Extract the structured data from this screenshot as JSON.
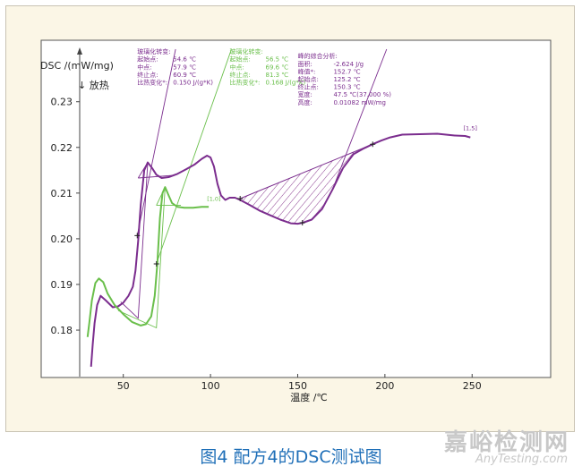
{
  "chart_data": {
    "type": "line",
    "ylabel": "DSC /(mW/mg)",
    "ylabel_direction": "↓ 放热",
    "xlabel": "温度 /℃",
    "xlim": [
      25,
      255
    ],
    "ylim": [
      0.171,
      0.2415
    ],
    "x_ticks": [
      50,
      100,
      150,
      200,
      250
    ],
    "y_ticks": [
      0.18,
      0.19,
      0.2,
      0.21,
      0.22,
      0.23
    ],
    "y_tick_labels": [
      "0.18",
      "0.19",
      "0.20",
      "0.21",
      "0.22",
      "0.23"
    ],
    "grid": false,
    "series": [
      {
        "color": "#7b2d8e",
        "points": [
          [
            31.5,
            0.172
          ],
          [
            32.5,
            0.177
          ],
          [
            33.5,
            0.1815
          ],
          [
            35,
            0.1855
          ],
          [
            37,
            0.1875
          ],
          [
            40,
            0.1865
          ],
          [
            44,
            0.185
          ],
          [
            47,
            0.1852
          ],
          [
            50,
            0.186
          ],
          [
            53,
            0.1875
          ],
          [
            55.5,
            0.1895
          ],
          [
            57,
            0.193
          ],
          [
            58.5,
            0.1995
          ],
          [
            60,
            0.2075
          ],
          [
            62,
            0.215
          ],
          [
            64,
            0.2167
          ],
          [
            66.5,
            0.2155
          ],
          [
            69,
            0.214
          ],
          [
            72,
            0.2133
          ],
          [
            76,
            0.2135
          ],
          [
            81,
            0.2142
          ],
          [
            86,
            0.2152
          ],
          [
            91,
            0.2163
          ],
          [
            95,
            0.2175
          ],
          [
            98,
            0.2182
          ],
          [
            100,
            0.2178
          ],
          [
            102,
            0.2158
          ],
          [
            104,
            0.212
          ],
          [
            106,
            0.2095
          ],
          [
            108.5,
            0.2085
          ],
          [
            111,
            0.209
          ],
          [
            114,
            0.209
          ],
          [
            117,
            0.2085
          ],
          [
            122,
            0.2075
          ],
          [
            128,
            0.2062
          ],
          [
            134,
            0.2052
          ],
          [
            140,
            0.2042
          ],
          [
            146,
            0.2034
          ],
          [
            150,
            0.2033
          ],
          [
            153,
            0.2035
          ],
          [
            158,
            0.2042
          ],
          [
            164,
            0.2065
          ],
          [
            170,
            0.2108
          ],
          [
            176,
            0.2155
          ],
          [
            182,
            0.2185
          ],
          [
            188,
            0.2198
          ],
          [
            193,
            0.2207
          ],
          [
            198,
            0.2215
          ],
          [
            203,
            0.2222
          ],
          [
            210,
            0.2228
          ],
          [
            220,
            0.2229
          ],
          [
            230,
            0.223
          ],
          [
            240,
            0.2226
          ],
          [
            246,
            0.2225
          ],
          [
            249,
            0.2222
          ]
        ]
      },
      {
        "color": "#6abf4b",
        "points": [
          [
            29.5,
            0.1785
          ],
          [
            30.5,
            0.1815
          ],
          [
            32,
            0.1865
          ],
          [
            34,
            0.1903
          ],
          [
            36,
            0.1913
          ],
          [
            38.5,
            0.1905
          ],
          [
            41,
            0.188
          ],
          [
            45,
            0.1855
          ],
          [
            50,
            0.1835
          ],
          [
            55,
            0.1818
          ],
          [
            60,
            0.181
          ],
          [
            63,
            0.1813
          ],
          [
            66,
            0.183
          ],
          [
            68,
            0.1875
          ],
          [
            69.5,
            0.1945
          ],
          [
            71,
            0.2045
          ],
          [
            72.5,
            0.21
          ],
          [
            74,
            0.2113
          ],
          [
            76,
            0.2095
          ],
          [
            78,
            0.2078
          ],
          [
            81,
            0.207
          ],
          [
            85,
            0.2068
          ],
          [
            90,
            0.2068
          ],
          [
            95,
            0.207
          ],
          [
            99,
            0.207
          ]
        ]
      }
    ],
    "guide_lines": [
      {
        "color": "#7b2d8e",
        "points": [
          [
            48.5,
            0.1862
          ],
          [
            58.5,
            0.1826
          ],
          [
            64,
            0.2167
          ],
          [
            58.5,
            0.2133
          ]
        ]
      },
      {
        "color": "#7b2d8e",
        "points": [
          [
            58.5,
            0.2133
          ],
          [
            79,
            0.2139
          ]
        ]
      },
      {
        "color": "#7b2d8e",
        "points": [
          [
            58,
            0.2007
          ],
          [
            80,
            0.2415
          ]
        ]
      },
      {
        "color": "#6abf4b",
        "points": [
          [
            47,
            0.1843
          ],
          [
            69,
            0.1805
          ],
          [
            74,
            0.2113
          ],
          [
            69,
            0.2073
          ]
        ]
      },
      {
        "color": "#6abf4b",
        "points": [
          [
            69,
            0.2073
          ],
          [
            83,
            0.2073
          ]
        ]
      },
      {
        "color": "#6abf4b",
        "points": [
          [
            69,
            0.1945
          ],
          [
            112,
            0.2415
          ]
        ]
      },
      {
        "color": "#7b2d8e",
        "points": [
          [
            170,
            0.2108
          ],
          [
            201,
            0.2415
          ]
        ]
      }
    ],
    "baseline": {
      "from": [
        117,
        0.2088
      ],
      "to": [
        193,
        0.2207
      ]
    },
    "markers": [
      {
        "color": "#7b2d8e",
        "point": [
          58,
          0.2007
        ]
      },
      {
        "color": "#7b2d8e",
        "point": [
          117,
          0.2088
        ]
      },
      {
        "color": "#7b2d8e",
        "point": [
          152.7,
          0.2035
        ]
      },
      {
        "color": "#7b2d8e",
        "point": [
          193,
          0.2207
        ]
      },
      {
        "color": "#6abf4b",
        "point": [
          69,
          0.1945
        ]
      }
    ],
    "end_labels": [
      {
        "text": "[1,0]",
        "color": "#6abf4b",
        "point": [
          98,
          0.2083
        ]
      },
      {
        "text": "[1,5]",
        "color": "#7b2d8e",
        "point": [
          245,
          0.2238
        ]
      }
    ],
    "annotations": [
      {
        "color": "#7b2d8e",
        "anchor": [
          58,
          0.2405
        ],
        "lines": [
          {
            "label": "玻璃化转变:",
            "value": ""
          },
          {
            "label": "起始点:",
            "value": "54.6 ℃"
          },
          {
            "label": "中点:",
            "value": "57.9 ℃"
          },
          {
            "label": "终止点:",
            "value": "60.9 ℃"
          },
          {
            "label": "比热变化*:",
            "value": "0.150 J/(g*K)"
          }
        ]
      },
      {
        "color": "#6abf4b",
        "anchor": [
          111,
          0.2405
        ],
        "lines": [
          {
            "label": "玻璃化转变:",
            "value": ""
          },
          {
            "label": "起始点:",
            "value": "56.5 ℃"
          },
          {
            "label": "中点:",
            "value": "69.6 ℃"
          },
          {
            "label": "终止点:",
            "value": "81.3 ℃"
          },
          {
            "label": "比热变化*:",
            "value": "0.168 J/(g*K)"
          }
        ]
      },
      {
        "color": "#7b2d8e",
        "anchor": [
          150,
          0.2395
        ],
        "lines": [
          {
            "label": "峰的综合分析:",
            "value": ""
          },
          {
            "label": "面积:",
            "value": "-2.624 J/g"
          },
          {
            "label": "峰值*:",
            "value": "152.7 ℃"
          },
          {
            "label": "起始点:",
            "value": "125.2 ℃"
          },
          {
            "label": "终止点:",
            "value": "150.3 ℃"
          },
          {
            "label": "宽度:",
            "value": "47.5 ℃(37.000 %)"
          },
          {
            "label": "高度:",
            "value": "0.01082 mW/mg"
          }
        ]
      }
    ]
  },
  "caption": "图4 配方4的DSC测试图",
  "watermark": {
    "cn": "嘉峪检测网",
    "en": "AnyTesting.com"
  }
}
